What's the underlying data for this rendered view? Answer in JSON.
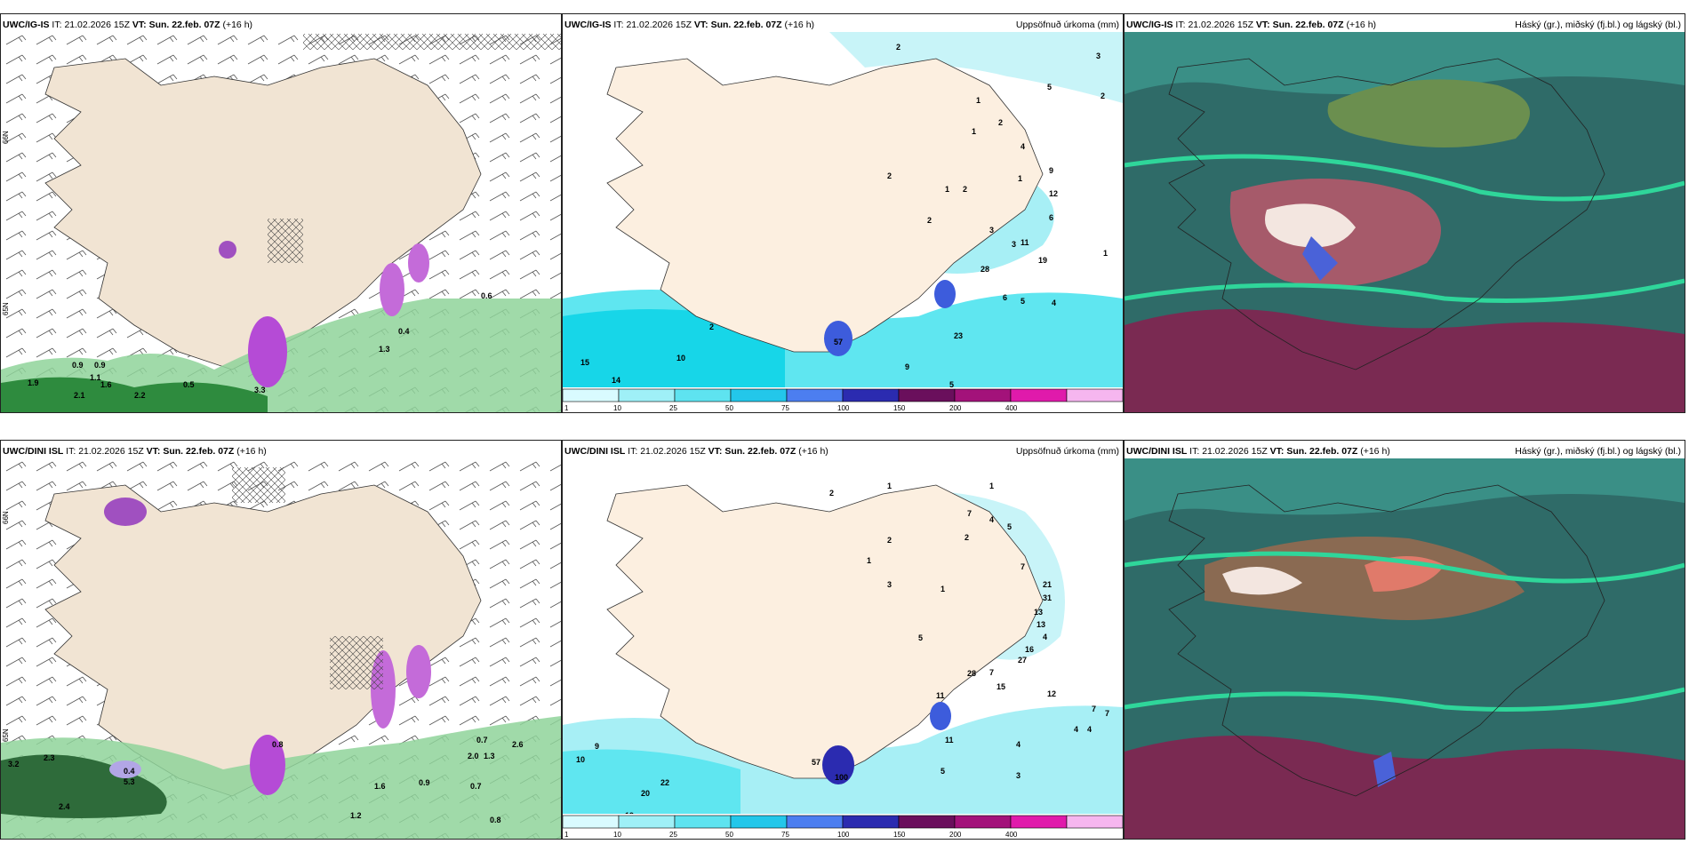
{
  "rows": [
    {
      "model": "UWC/IG-IS",
      "it_label": "IT:",
      "it": "21.02.2026 15Z",
      "vt_label": "VT:",
      "vt": "Sun. 22.feb. 07Z",
      "lead": "(+16 h)",
      "wind_labels": [
        "0.6",
        "0.9",
        "0.9",
        "1.1",
        "1.6",
        "1.9",
        "2.1",
        "2.2",
        "3.3",
        "0.5",
        "0.4",
        "1.3"
      ],
      "precip_labels": [
        "2",
        "3",
        "5",
        "2",
        "1",
        "1",
        "2",
        "2",
        "4",
        "2",
        "1",
        "2",
        "1",
        "3",
        "9",
        "12",
        "6",
        "11",
        "19",
        "3",
        "1",
        "28",
        "6",
        "5",
        "4",
        "23",
        "9",
        "5",
        "5",
        "2",
        "15",
        "14",
        "10",
        "15",
        "7",
        "12",
        "57"
      ],
      "lat_labels": [
        "66N",
        "65N",
        "64N"
      ]
    },
    {
      "model": "UWC/DINI ISL",
      "it_label": "IT:",
      "it": "21.02.2026 15Z",
      "vt_label": "VT:",
      "vt": "Sun. 22.feb. 07Z",
      "lead": "(+16 h)",
      "wind_labels": [
        "0.7",
        "3.2",
        "2.3",
        "0.4",
        "5.3",
        "2.4",
        "1.6",
        "1.2",
        "0.9",
        "0.7",
        "0.8",
        "2.0",
        "1.3",
        "2.6",
        "0.8"
      ],
      "precip_labels": [
        "2",
        "1",
        "1",
        "7",
        "4",
        "5",
        "2",
        "2",
        "1",
        "3",
        "1",
        "5",
        "7",
        "21",
        "31",
        "13",
        "13",
        "4",
        "12",
        "7",
        "7",
        "4",
        "4",
        "4",
        "3",
        "5",
        "11",
        "15",
        "27",
        "16",
        "28",
        "7",
        "11",
        "9",
        "10",
        "22",
        "20",
        "19",
        "57",
        "100"
      ],
      "lat_labels": [
        "66N",
        "65N",
        "64N"
      ]
    }
  ],
  "precip_title": "Uppsöfnuð úrkoma (mm)",
  "cloud_title": "Háský (gr.), miðský (fj.bl.) og lágský (bl.)",
  "legend": {
    "ticks": [
      "1",
      "10",
      "25",
      "50",
      "75",
      "100",
      "150",
      "200",
      "400"
    ],
    "colors": [
      "#d9fbff",
      "#9ff0f7",
      "#5ee3f0",
      "#23c7ea",
      "#4c7ef0",
      "#2b2bb0",
      "#6a0f5c",
      "#a3127a",
      "#e01aab",
      "#f6b6ef"
    ]
  }
}
